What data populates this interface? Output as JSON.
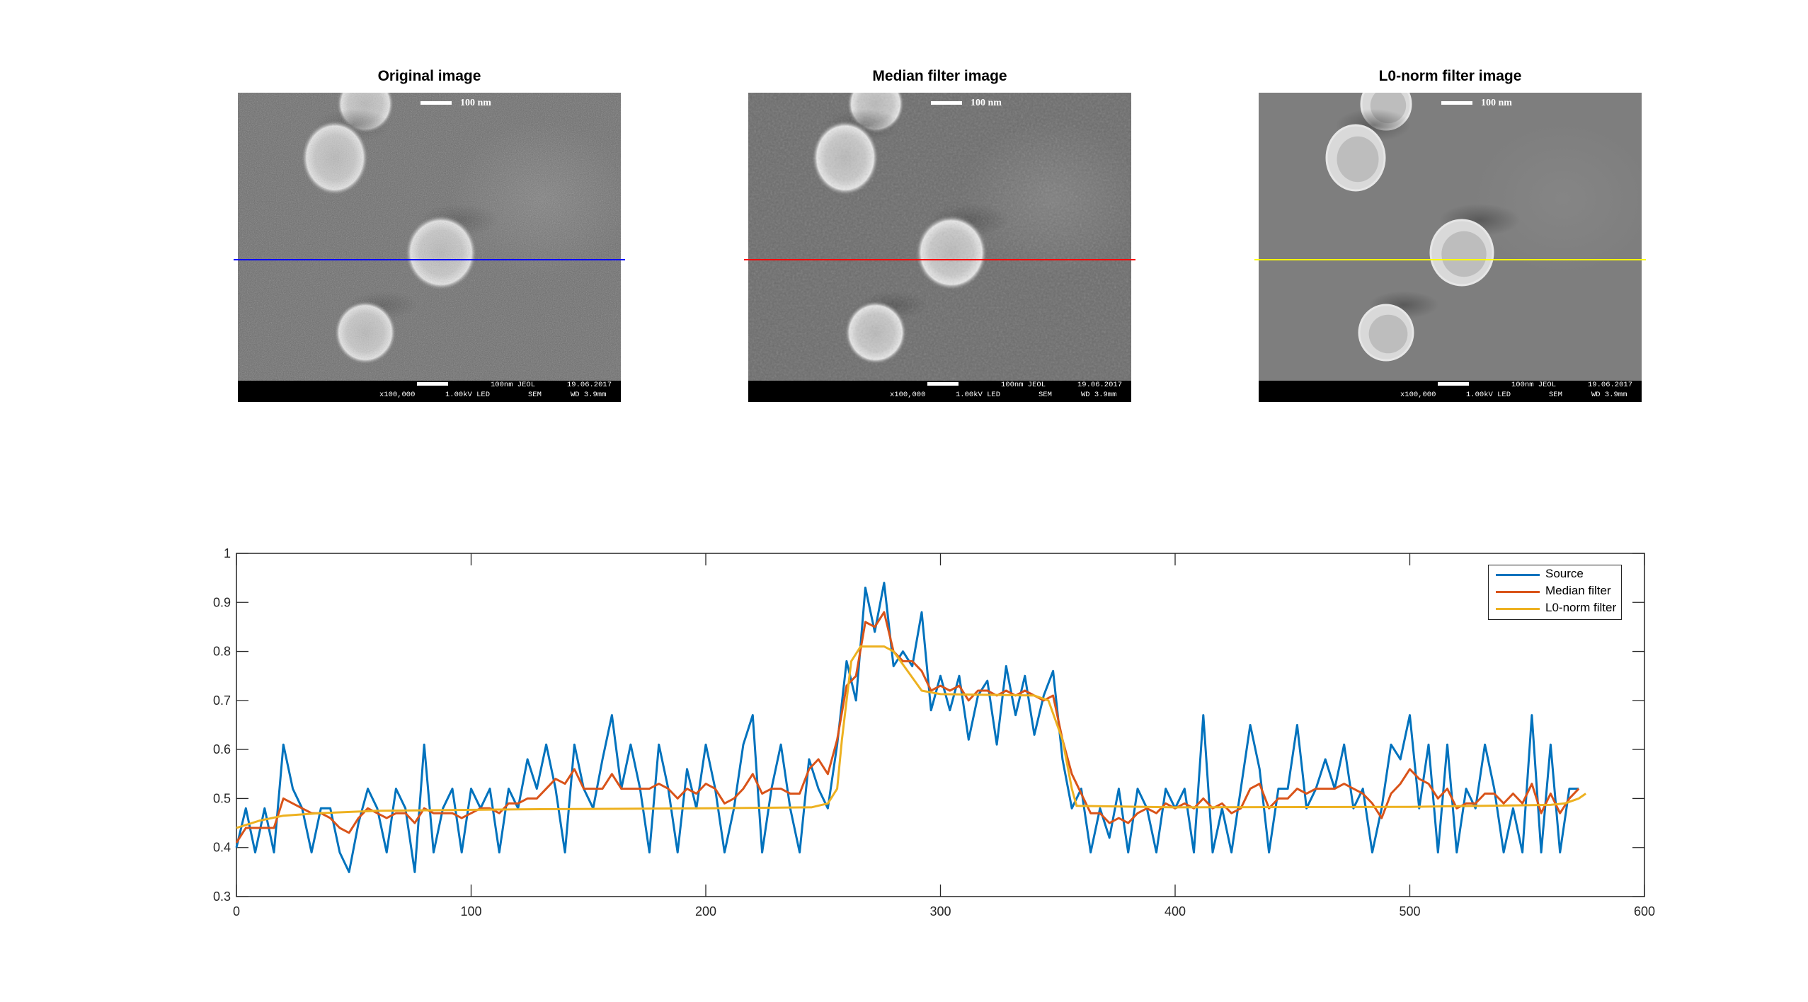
{
  "panels": [
    {
      "title": "Original image",
      "line_color": "#0000ff",
      "style": "noisy"
    },
    {
      "title": "Median filter image",
      "line_color": "#ff0000",
      "style": "median"
    },
    {
      "title": "L0-norm filter image",
      "line_color": "#ffff00",
      "style": "l0"
    }
  ],
  "sem": {
    "scale_label": "100 nm",
    "bar_scale": "100nm JEOL",
    "date": "19.06.2017",
    "magnification": "x100,000",
    "voltage": "1.00kV LED",
    "mode": "SEM",
    "wd": "WD 3.9mm"
  },
  "chart_data": {
    "type": "line",
    "xlim": [
      0,
      600
    ],
    "ylim": [
      0.3,
      1
    ],
    "x_ticks": [
      0,
      100,
      200,
      300,
      400,
      500,
      600
    ],
    "x_tick_labels": [
      "0",
      "100",
      "200",
      "300",
      "400",
      "500",
      "600"
    ],
    "y_ticks": [
      0.3,
      0.4,
      0.5,
      0.6,
      0.7,
      0.8,
      0.9,
      1
    ],
    "y_tick_labels": [
      "0.3",
      "0.4",
      "0.5",
      "0.6",
      "0.7",
      "0.8",
      "0.9",
      "1"
    ],
    "grid": false,
    "legend_position": "top-right",
    "x": [
      0,
      4,
      8,
      12,
      16,
      20,
      24,
      28,
      32,
      36,
      40,
      44,
      48,
      52,
      56,
      60,
      64,
      68,
      72,
      76,
      80,
      84,
      88,
      92,
      96,
      100,
      104,
      108,
      112,
      116,
      120,
      124,
      128,
      132,
      136,
      140,
      144,
      148,
      152,
      156,
      160,
      164,
      168,
      172,
      176,
      180,
      184,
      188,
      192,
      196,
      200,
      204,
      208,
      212,
      216,
      220,
      224,
      228,
      232,
      236,
      240,
      244,
      248,
      252,
      256,
      260,
      264,
      268,
      272,
      276,
      280,
      284,
      288,
      292,
      296,
      300,
      304,
      308,
      312,
      316,
      320,
      324,
      328,
      332,
      336,
      340,
      344,
      348,
      352,
      356,
      360,
      364,
      368,
      372,
      376,
      380,
      384,
      388,
      392,
      396,
      400,
      404,
      408,
      412,
      416,
      420,
      424,
      428,
      432,
      436,
      440,
      444,
      448,
      452,
      456,
      460,
      464,
      468,
      472,
      476,
      480,
      484,
      488,
      492,
      496,
      500,
      504,
      508,
      512,
      516,
      520,
      524,
      528,
      532,
      536,
      540,
      544,
      548,
      552,
      556,
      560,
      564,
      568,
      572
    ],
    "series": [
      {
        "name": "Source",
        "color": "#0072BD",
        "values": [
          0.4,
          0.48,
          0.39,
          0.48,
          0.39,
          0.61,
          0.52,
          0.48,
          0.39,
          0.48,
          0.48,
          0.39,
          0.35,
          0.45,
          0.52,
          0.48,
          0.39,
          0.52,
          0.48,
          0.35,
          0.61,
          0.39,
          0.48,
          0.52,
          0.39,
          0.52,
          0.48,
          0.52,
          0.39,
          0.52,
          0.48,
          0.58,
          0.52,
          0.61,
          0.52,
          0.39,
          0.61,
          0.52,
          0.48,
          0.58,
          0.67,
          0.52,
          0.61,
          0.52,
          0.39,
          0.61,
          0.52,
          0.39,
          0.56,
          0.48,
          0.61,
          0.52,
          0.39,
          0.48,
          0.61,
          0.67,
          0.39,
          0.52,
          0.61,
          0.48,
          0.39,
          0.58,
          0.52,
          0.48,
          0.61,
          0.78,
          0.7,
          0.93,
          0.84,
          0.94,
          0.77,
          0.8,
          0.77,
          0.88,
          0.68,
          0.75,
          0.68,
          0.75,
          0.62,
          0.71,
          0.74,
          0.61,
          0.77,
          0.67,
          0.75,
          0.63,
          0.71,
          0.76,
          0.58,
          0.48,
          0.52,
          0.39,
          0.48,
          0.42,
          0.52,
          0.39,
          0.52,
          0.48,
          0.39,
          0.52,
          0.48,
          0.52,
          0.39,
          0.67,
          0.39,
          0.48,
          0.39,
          0.52,
          0.65,
          0.56,
          0.39,
          0.52,
          0.52,
          0.65,
          0.48,
          0.52,
          0.58,
          0.52,
          0.61,
          0.48,
          0.52,
          0.39,
          0.48,
          0.61,
          0.58,
          0.67,
          0.48,
          0.61,
          0.39,
          0.61,
          0.39,
          0.52,
          0.48,
          0.61,
          0.52,
          0.39,
          0.48,
          0.39,
          0.67,
          0.39,
          0.61,
          0.39,
          0.52,
          0.52
        ]
      },
      {
        "name": "Median filter",
        "color": "#D95319",
        "values": [
          0.41,
          0.44,
          0.44,
          0.44,
          0.44,
          0.5,
          0.49,
          0.48,
          0.47,
          0.47,
          0.46,
          0.44,
          0.43,
          0.46,
          0.48,
          0.47,
          0.46,
          0.47,
          0.47,
          0.45,
          0.48,
          0.47,
          0.47,
          0.47,
          0.46,
          0.47,
          0.48,
          0.48,
          0.47,
          0.49,
          0.49,
          0.5,
          0.5,
          0.52,
          0.54,
          0.53,
          0.56,
          0.52,
          0.52,
          0.52,
          0.55,
          0.52,
          0.52,
          0.52,
          0.52,
          0.53,
          0.52,
          0.5,
          0.52,
          0.51,
          0.53,
          0.52,
          0.49,
          0.5,
          0.52,
          0.55,
          0.51,
          0.52,
          0.52,
          0.51,
          0.51,
          0.56,
          0.58,
          0.55,
          0.62,
          0.73,
          0.75,
          0.86,
          0.85,
          0.88,
          0.8,
          0.78,
          0.78,
          0.76,
          0.72,
          0.73,
          0.72,
          0.73,
          0.7,
          0.72,
          0.72,
          0.71,
          0.72,
          0.71,
          0.72,
          0.71,
          0.7,
          0.71,
          0.62,
          0.55,
          0.51,
          0.47,
          0.47,
          0.45,
          0.46,
          0.45,
          0.47,
          0.48,
          0.47,
          0.49,
          0.48,
          0.49,
          0.48,
          0.5,
          0.48,
          0.49,
          0.47,
          0.48,
          0.52,
          0.53,
          0.48,
          0.5,
          0.5,
          0.52,
          0.51,
          0.52,
          0.52,
          0.52,
          0.53,
          0.52,
          0.51,
          0.49,
          0.46,
          0.51,
          0.53,
          0.56,
          0.54,
          0.53,
          0.5,
          0.52,
          0.48,
          0.49,
          0.49,
          0.51,
          0.51,
          0.49,
          0.51,
          0.49,
          0.53,
          0.47,
          0.51,
          0.47,
          0.5,
          0.52
        ]
      },
      {
        "name": "L0-norm filter",
        "color": "#EDB120",
        "x": [
          0,
          10,
          20,
          35,
          60,
          120,
          200,
          245,
          252,
          256,
          258,
          262,
          266,
          276,
          280,
          286,
          292,
          300,
          340,
          346,
          352,
          356,
          358,
          400,
          500,
          560,
          566,
          572,
          575
        ],
        "values": [
          0.44,
          0.455,
          0.465,
          0.47,
          0.475,
          0.478,
          0.48,
          0.482,
          0.49,
          0.52,
          0.62,
          0.78,
          0.81,
          0.81,
          0.8,
          0.76,
          0.72,
          0.713,
          0.71,
          0.7,
          0.62,
          0.52,
          0.485,
          0.482,
          0.483,
          0.487,
          0.49,
          0.5,
          0.51
        ]
      }
    ]
  }
}
